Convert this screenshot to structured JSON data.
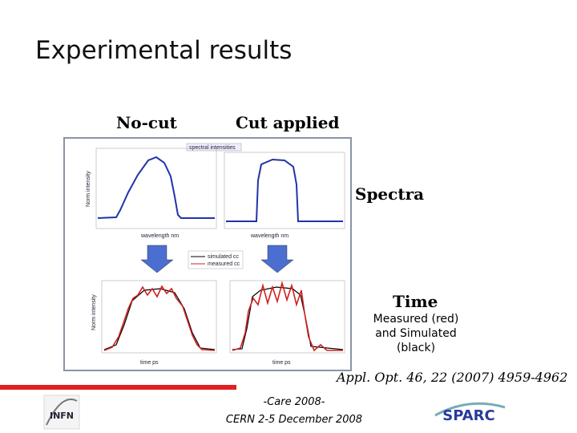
{
  "header": {
    "title": "Experimental results"
  },
  "columns": {
    "left": "No-cut",
    "right": "Cut applied"
  },
  "figure": {
    "top_title": "spectral intensities",
    "y_label": "Norm intensity",
    "x_label_top": "wavelength nm",
    "x_label_bottom": "time ps",
    "legend": [
      "simulated cc",
      "measured cc"
    ]
  },
  "annotations": {
    "spectra": "Spectra",
    "time": "Time",
    "time_note": [
      "Measured (red)",
      "and Simulated",
      "(black)"
    ]
  },
  "citation": "Appl. Opt. 46, 22 (2007) 4959-4962",
  "footer": {
    "line1": "-Care 2008-",
    "line2": "CERN 2-5 December 2008",
    "logo_left": "INFN",
    "logo_right": "SPARC"
  }
}
